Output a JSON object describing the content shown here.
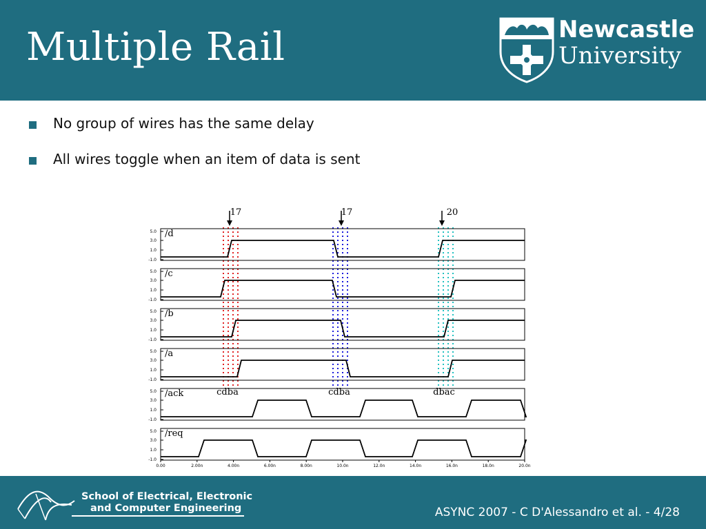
{
  "slide": {
    "title": "Multiple Rail",
    "bullets": [
      "No group of wires has the same delay",
      "All wires toggle when an item of data is sent"
    ]
  },
  "logo": {
    "word1": "Newcastle",
    "word2": "University",
    "icon": "university-crest-icon"
  },
  "waveform": {
    "marker_labels": [
      "17",
      "17",
      "20"
    ],
    "signals": [
      "/d",
      "/c",
      "/b",
      "/a",
      "/ack",
      "/req"
    ],
    "y_ticks": [
      "5.0",
      "3.0",
      "1.0",
      "-1.0"
    ],
    "x_ticks": [
      "0.00",
      "2.00n",
      "4.00n",
      "6.00n",
      "8.00n",
      "10.0n",
      "12.0n",
      "14.0n",
      "16.0n",
      "18.0n",
      "20.0n"
    ],
    "order_labels": [
      "cdba",
      "cdba",
      "dbac"
    ],
    "group_colors": [
      "#e02020",
      "#1a1adc",
      "#20c0c0"
    ],
    "trace_color": "#000000"
  },
  "footer": {
    "school_line1": "School of Electrical, Electronic",
    "school_line2": "and Computer Engineering",
    "page_info": "ASYNC 2007 - C D'Alessandro et al. - 4/28"
  }
}
